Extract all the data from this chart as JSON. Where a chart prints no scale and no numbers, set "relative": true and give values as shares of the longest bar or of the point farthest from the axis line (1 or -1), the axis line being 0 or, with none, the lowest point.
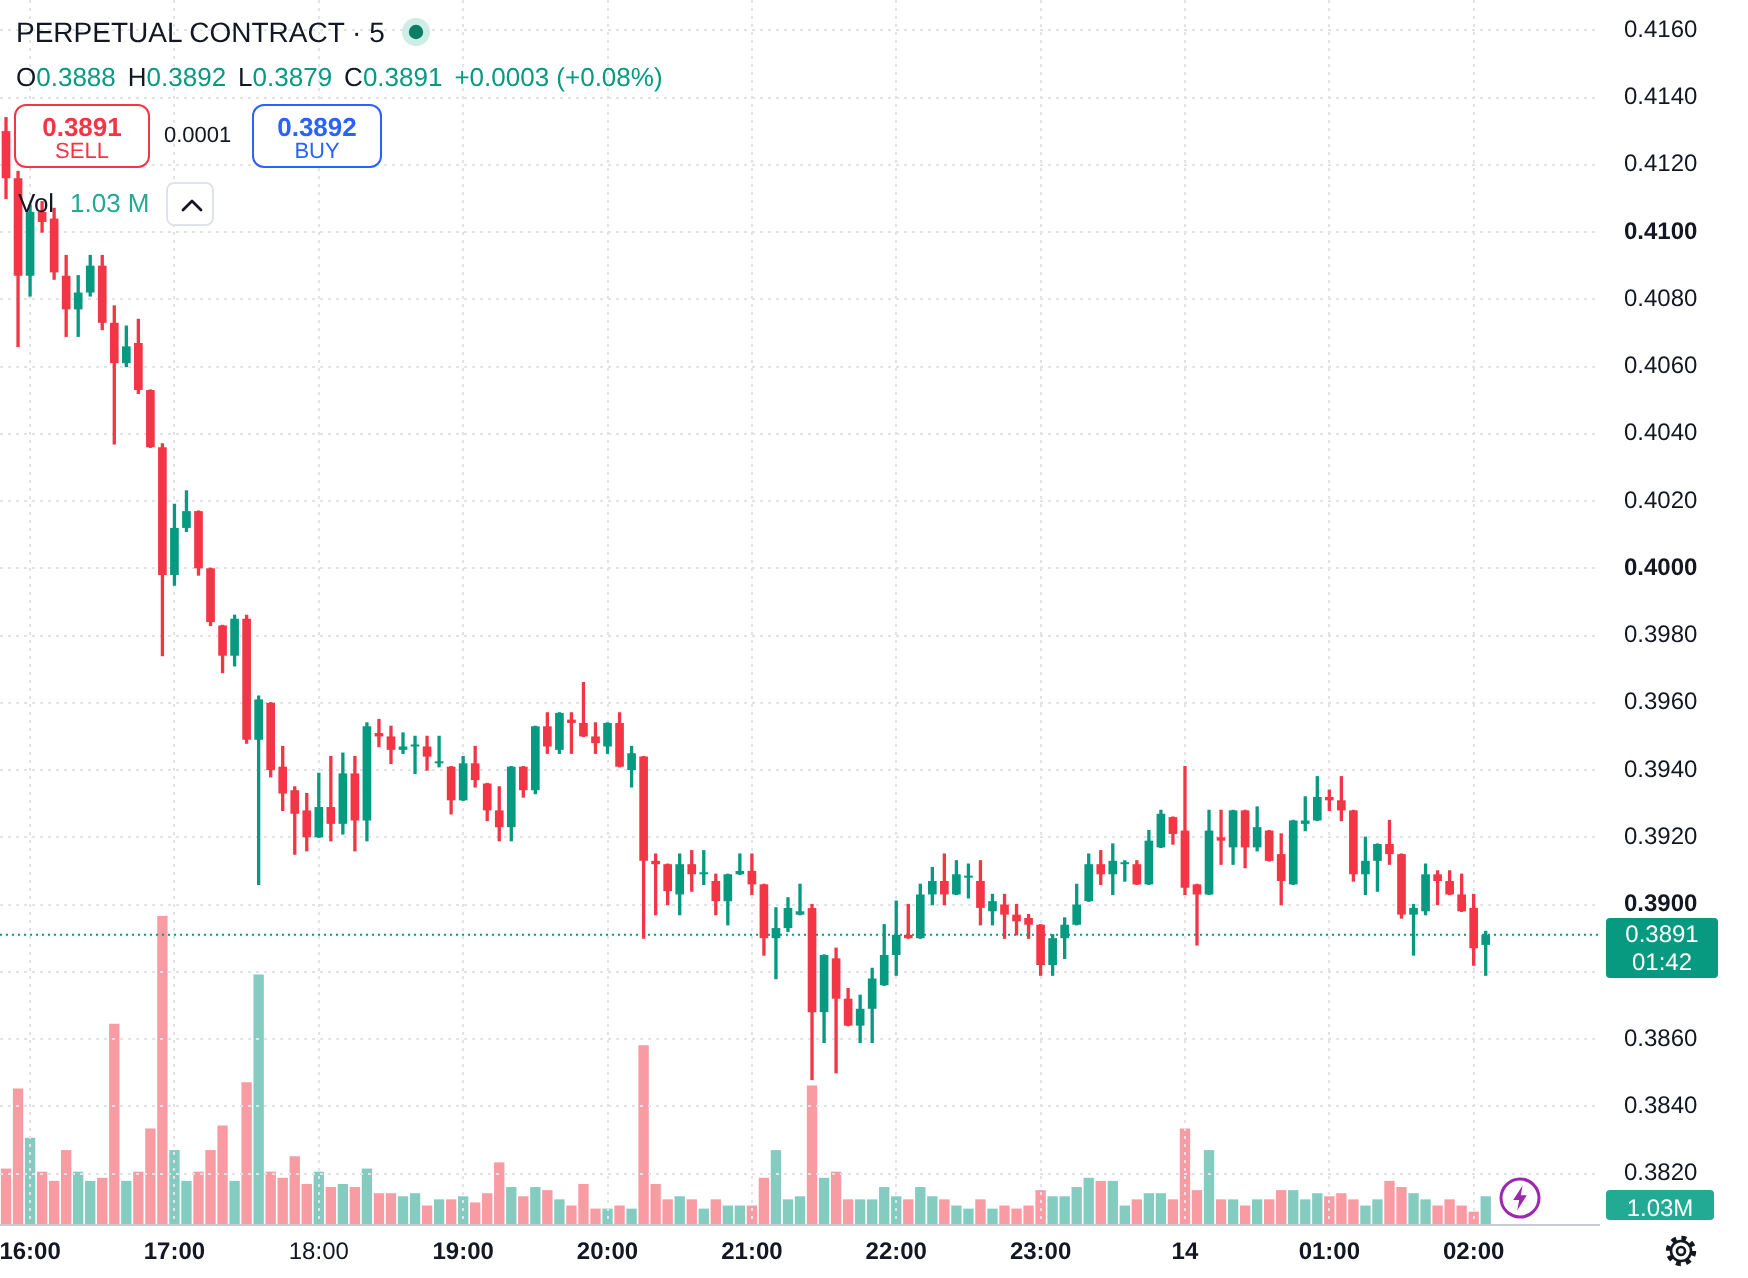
{
  "chart_data": [
    {
      "type": "candlestick",
      "title": "PERPETUAL CONTRACT · 5",
      "categories": [
        null,
        null,
        "16:00",
        null,
        null,
        null,
        null,
        null,
        null,
        null,
        null,
        null,
        null,
        null,
        "17:00",
        null,
        null,
        null,
        null,
        null,
        null,
        null,
        null,
        null,
        null,
        null,
        "18:00",
        null,
        null,
        null,
        null,
        null,
        null,
        null,
        null,
        null,
        null,
        null,
        "19:00",
        null,
        null,
        null,
        null,
        null,
        null,
        null,
        null,
        null,
        null,
        null,
        "20:00",
        null,
        null,
        null,
        null,
        null,
        null,
        null,
        null,
        null,
        null,
        null,
        "21:00",
        null,
        null,
        null,
        null,
        null,
        null,
        null,
        null,
        null,
        null,
        null,
        "22:00",
        null,
        null,
        null,
        null,
        null,
        null,
        null,
        null,
        null,
        null,
        null,
        "23:00",
        null,
        null,
        null,
        null,
        null,
        null,
        null,
        null,
        null,
        null,
        null,
        "14",
        null,
        null,
        null,
        null,
        null,
        null,
        null,
        null,
        null,
        null,
        null,
        "01:00",
        null,
        null,
        null,
        null,
        null,
        null,
        null,
        null,
        null,
        null,
        null,
        "02:00",
        null,
        null,
        null,
        null,
        null,
        null,
        null,
        null,
        null,
        null
      ],
      "ohlc": [
        [
          0.413,
          0.4134,
          0.411,
          0.4116
        ],
        [
          0.4116,
          0.4118,
          0.4066,
          0.4087
        ],
        [
          0.4087,
          0.4108,
          0.4081,
          0.4106
        ],
        [
          0.4106,
          0.4109,
          0.41,
          0.4103
        ],
        [
          0.4104,
          0.4107,
          0.4086,
          0.4088
        ],
        [
          0.4087,
          0.4093,
          0.4069,
          0.4077
        ],
        [
          0.4077,
          0.4087,
          0.4069,
          0.4082
        ],
        [
          0.4082,
          0.4093,
          0.4081,
          0.409
        ],
        [
          0.409,
          0.4093,
          0.4071,
          0.4073
        ],
        [
          0.4073,
          0.4078,
          0.4037,
          0.4061
        ],
        [
          0.4061,
          0.4072,
          0.406,
          0.4066
        ],
        [
          0.4067,
          0.4074,
          0.4052,
          0.4053
        ],
        [
          0.4053,
          0.4053,
          0.4036,
          0.4036
        ],
        [
          0.4036,
          0.4037,
          0.3974,
          0.3998
        ],
        [
          0.3998,
          0.4019,
          0.3995,
          0.4012
        ],
        [
          0.4012,
          0.4023,
          0.4011,
          0.4017
        ],
        [
          0.4017,
          0.4017,
          0.3998,
          0.4
        ],
        [
          0.4,
          0.4,
          0.3983,
          0.3984
        ],
        [
          0.3983,
          0.3983,
          0.3969,
          0.3974
        ],
        [
          0.3974,
          0.3986,
          0.3971,
          0.3985
        ],
        [
          0.3985,
          0.3986,
          0.3948,
          0.3949
        ],
        [
          0.3949,
          0.3962,
          0.3906,
          0.3961
        ],
        [
          0.396,
          0.396,
          0.3938,
          0.394
        ],
        [
          0.3941,
          0.3947,
          0.3928,
          0.3933
        ],
        [
          0.3934,
          0.3935,
          0.3915,
          0.3927
        ],
        [
          0.3928,
          0.3933,
          0.3916,
          0.392
        ],
        [
          0.392,
          0.3939,
          0.392,
          0.3929
        ],
        [
          0.3929,
          0.3944,
          0.3919,
          0.3924
        ],
        [
          0.3924,
          0.3945,
          0.3921,
          0.3939
        ],
        [
          0.3939,
          0.3944,
          0.3916,
          0.3925
        ],
        [
          0.3925,
          0.3954,
          0.3919,
          0.3953
        ],
        [
          0.3951,
          0.3955,
          0.3947,
          0.395
        ],
        [
          0.395,
          0.3953,
          0.3942,
          0.3946
        ],
        [
          0.3946,
          0.3951,
          0.3945,
          0.3947
        ],
        [
          0.3947,
          0.395,
          0.3939,
          0.3947
        ],
        [
          0.3947,
          0.395,
          0.394,
          0.3944
        ],
        [
          0.3942,
          0.395,
          0.3941,
          0.3942
        ],
        [
          0.3941,
          0.3941,
          0.3927,
          0.3931
        ],
        [
          0.3931,
          0.3944,
          0.3931,
          0.3942
        ],
        [
          0.3942,
          0.3947,
          0.3935,
          0.3937
        ],
        [
          0.3936,
          0.3936,
          0.3925,
          0.3928
        ],
        [
          0.3928,
          0.3935,
          0.3919,
          0.3923
        ],
        [
          0.3923,
          0.3941,
          0.3919,
          0.3941
        ],
        [
          0.3941,
          0.3941,
          0.3932,
          0.3934
        ],
        [
          0.3934,
          0.3953,
          0.3933,
          0.3953
        ],
        [
          0.3953,
          0.3957,
          0.3945,
          0.3947
        ],
        [
          0.3946,
          0.3957,
          0.3945,
          0.3957
        ],
        [
          0.3955,
          0.3957,
          0.3945,
          0.3954
        ],
        [
          0.3954,
          0.3966,
          0.395,
          0.395
        ],
        [
          0.395,
          0.3954,
          0.3945,
          0.3948
        ],
        [
          0.3947,
          0.3954,
          0.3945,
          0.3954
        ],
        [
          0.3954,
          0.3957,
          0.3941,
          0.3941
        ],
        [
          0.394,
          0.3947,
          0.3935,
          0.3945
        ],
        [
          0.3944,
          0.3944,
          0.389,
          0.3913
        ],
        [
          0.3913,
          0.3915,
          0.3897,
          0.3912
        ],
        [
          0.3912,
          0.3912,
          0.39,
          0.3904
        ],
        [
          0.3903,
          0.3915,
          0.3897,
          0.3912
        ],
        [
          0.3912,
          0.3916,
          0.3904,
          0.3909
        ],
        [
          0.3909,
          0.3916,
          0.3906,
          0.3909
        ],
        [
          0.3907,
          0.3909,
          0.3897,
          0.3901
        ],
        [
          0.3901,
          0.3909,
          0.3894,
          0.3909
        ],
        [
          0.3909,
          0.3915,
          0.3909,
          0.391
        ],
        [
          0.391,
          0.3915,
          0.3903,
          0.3906
        ],
        [
          0.3906,
          0.3906,
          0.3885,
          0.389
        ],
        [
          0.389,
          0.3899,
          0.3878,
          0.3893
        ],
        [
          0.3893,
          0.3902,
          0.3892,
          0.3899
        ],
        [
          0.3897,
          0.3906,
          0.3897,
          0.3898
        ],
        [
          0.3899,
          0.39,
          0.3848,
          0.3868
        ],
        [
          0.3868,
          0.3885,
          0.3859,
          0.3885
        ],
        [
          0.3884,
          0.3887,
          0.385,
          0.3872
        ],
        [
          0.3872,
          0.3875,
          0.3864,
          0.3864
        ],
        [
          0.3864,
          0.3873,
          0.3859,
          0.3869
        ],
        [
          0.3869,
          0.3881,
          0.3859,
          0.3878
        ],
        [
          0.3876,
          0.3894,
          0.3876,
          0.3885
        ],
        [
          0.3885,
          0.3901,
          0.3879,
          0.3891
        ],
        [
          0.3891,
          0.39,
          0.389,
          0.389
        ],
        [
          0.389,
          0.3906,
          0.389,
          0.3903
        ],
        [
          0.3903,
          0.3911,
          0.39,
          0.3907
        ],
        [
          0.3907,
          0.3915,
          0.39,
          0.3903
        ],
        [
          0.3903,
          0.3913,
          0.3903,
          0.3909
        ],
        [
          0.3908,
          0.3912,
          0.3902,
          0.3908
        ],
        [
          0.3907,
          0.3913,
          0.3894,
          0.3899
        ],
        [
          0.3898,
          0.3903,
          0.3894,
          0.3901
        ],
        [
          0.39,
          0.3903,
          0.389,
          0.3897
        ],
        [
          0.3897,
          0.39,
          0.3891,
          0.3895
        ],
        [
          0.3896,
          0.3897,
          0.389,
          0.3894
        ],
        [
          0.3894,
          0.3894,
          0.3879,
          0.3882
        ],
        [
          0.3882,
          0.3891,
          0.3879,
          0.389
        ],
        [
          0.389,
          0.3896,
          0.3884,
          0.3894
        ],
        [
          0.3894,
          0.3906,
          0.3894,
          0.39
        ],
        [
          0.3901,
          0.3915,
          0.3901,
          0.3912
        ],
        [
          0.3912,
          0.3916,
          0.3906,
          0.3909
        ],
        [
          0.3909,
          0.3918,
          0.3903,
          0.3913
        ],
        [
          0.3912,
          0.3913,
          0.3907,
          0.3912
        ],
        [
          0.3912,
          0.3913,
          0.3906,
          0.3906
        ],
        [
          0.3906,
          0.3922,
          0.3906,
          0.3919
        ],
        [
          0.3917,
          0.3928,
          0.3917,
          0.3927
        ],
        [
          0.3926,
          0.3926,
          0.3918,
          0.3921
        ],
        [
          0.3922,
          0.3941,
          0.3903,
          0.3905
        ],
        [
          0.3906,
          0.3906,
          0.3888,
          0.3903
        ],
        [
          0.3903,
          0.3928,
          0.3903,
          0.3922
        ],
        [
          0.392,
          0.3928,
          0.3912,
          0.3919
        ],
        [
          0.3917,
          0.3928,
          0.3912,
          0.3928
        ],
        [
          0.3928,
          0.3928,
          0.3911,
          0.3917
        ],
        [
          0.3917,
          0.3929,
          0.3916,
          0.3923
        ],
        [
          0.3922,
          0.3922,
          0.3913,
          0.3913
        ],
        [
          0.3915,
          0.3921,
          0.39,
          0.3907
        ],
        [
          0.3906,
          0.3925,
          0.3906,
          0.3925
        ],
        [
          0.3924,
          0.3932,
          0.3922,
          0.3925
        ],
        [
          0.3925,
          0.3938,
          0.3925,
          0.3932
        ],
        [
          0.3932,
          0.3934,
          0.3928,
          0.3931
        ],
        [
          0.3931,
          0.3938,
          0.3925,
          0.3928
        ],
        [
          0.3928,
          0.3928,
          0.3907,
          0.3909
        ],
        [
          0.3909,
          0.392,
          0.3903,
          0.3913
        ],
        [
          0.3913,
          0.3918,
          0.3904,
          0.3918
        ],
        [
          0.3918,
          0.3925,
          0.3912,
          0.3915
        ],
        [
          0.3915,
          0.3915,
          0.3896,
          0.3897
        ],
        [
          0.3897,
          0.39,
          0.3885,
          0.3899
        ],
        [
          0.3898,
          0.3912,
          0.3897,
          0.3909
        ],
        [
          0.3909,
          0.391,
          0.39,
          0.3907
        ],
        [
          0.3907,
          0.391,
          0.3903,
          0.3903
        ],
        [
          0.3903,
          0.3909,
          0.3898,
          0.3898
        ],
        [
          0.3899,
          0.3903,
          0.3882,
          0.3887
        ],
        [
          0.3888,
          0.3892,
          0.3879,
          0.3891
        ],
        null,
        null,
        null,
        null,
        null,
        null,
        null,
        null,
        null
      ],
      "colors": [
        "#f23645",
        "#f23645",
        "#089981",
        "#f23645",
        "#f23645",
        "#f23645",
        "#089981",
        "#089981",
        "#f23645",
        "#f23645",
        "#089981",
        "#f23645",
        "#f23645",
        "#f23645",
        "#089981",
        "#089981",
        "#f23645",
        "#f23645",
        "#f23645",
        "#089981",
        "#f23645",
        "#089981",
        "#f23645",
        "#f23645",
        "#f23645",
        "#f23645",
        "#089981",
        "#f23645",
        "#089981",
        "#f23645",
        "#089981",
        "#f23645",
        "#f23645",
        "#089981",
        "#089981",
        "#f23645",
        "#089981",
        "#f23645",
        "#089981",
        "#f23645",
        "#f23645",
        "#f23645",
        "#089981",
        "#f23645",
        "#089981",
        "#f23645",
        "#089981",
        "#f23645",
        "#f23645",
        "#f23645",
        "#089981",
        "#f23645",
        "#089981",
        "#f23645",
        "#f23645",
        "#f23645",
        "#089981",
        "#f23645",
        "#089981",
        "#f23645",
        "#089981",
        "#089981",
        "#f23645",
        "#f23645",
        "#089981",
        "#089981",
        "#089981",
        "#f23645",
        "#089981",
        "#f23645",
        "#f23645",
        "#089981",
        "#089981",
        "#089981",
        "#089981",
        "#f23645",
        "#089981",
        "#089981",
        "#f23645",
        "#089981",
        "#089981",
        "#f23645",
        "#089981",
        "#f23645",
        "#f23645",
        "#f23645",
        "#f23645",
        "#089981",
        "#089981",
        "#089981",
        "#089981",
        "#f23645",
        "#089981",
        "#089981",
        "#f23645",
        "#089981",
        "#089981",
        "#f23645",
        "#f23645",
        "#f23645",
        "#089981",
        "#f23645",
        "#089981",
        "#f23645",
        "#089981",
        "#f23645",
        "#f23645",
        "#089981",
        "#089981",
        "#089981",
        "#f23645",
        "#f23645",
        "#f23645",
        "#089981",
        "#089981",
        "#f23645",
        "#f23645",
        "#089981",
        "#089981",
        "#f23645",
        "#f23645",
        "#f23645",
        "#f23645",
        "#089981",
        null,
        null,
        null,
        null,
        null,
        null,
        null,
        null,
        null
      ],
      "ylim": [
        0.3805,
        0.4169
      ],
      "yticks": [
        {
          "value": 0.382,
          "label": "0.3820"
        },
        {
          "value": 0.384,
          "label": "0.3840"
        },
        {
          "value": 0.386,
          "label": "0.3860"
        },
        {
          "value": 0.388,
          "label": null
        },
        {
          "value": 0.39,
          "label": "0.3900"
        },
        {
          "value": 0.392,
          "label": "0.3920"
        },
        {
          "value": 0.394,
          "label": "0.3940"
        },
        {
          "value": 0.396,
          "label": "0.3960"
        },
        {
          "value": 0.398,
          "label": "0.3980"
        },
        {
          "value": 0.4,
          "label": "0.4000"
        },
        {
          "value": 0.402,
          "label": "0.4020"
        },
        {
          "value": 0.404,
          "label": "0.4040"
        },
        {
          "value": 0.406,
          "label": "0.4060"
        },
        {
          "value": 0.408,
          "label": "0.4080"
        },
        {
          "value": 0.41,
          "label": "0.4100"
        },
        {
          "value": 0.412,
          "label": "0.4120"
        },
        {
          "value": 0.414,
          "label": "0.4140"
        },
        {
          "value": 0.416,
          "label": "0.4160"
        }
      ],
      "ref_lines": [
        {
          "axis": "y",
          "value": 0.3891,
          "label": "0.3891",
          "color": "#089981",
          "line_style": "dotted"
        }
      ],
      "annotations": [
        "O0.3888",
        "H0.3892",
        "L0.3879",
        "C0.3891",
        "+0.0003 (+0.08%)",
        "0.3891",
        "SELL",
        "0.0001",
        "0.3892",
        "BUY",
        "01:42",
        "Vol",
        "1.03 M",
        "1.03M"
      ],
      "grid": true
    },
    {
      "type": "bar",
      "relative": true,
      "categories": [
        null,
        null,
        null,
        null,
        null,
        null,
        null,
        null,
        null,
        null,
        null,
        null,
        null,
        null,
        null,
        null,
        null,
        null,
        null,
        null,
        null,
        null,
        null,
        null,
        null,
        null,
        null,
        null,
        null,
        null,
        null,
        null,
        null,
        null,
        null,
        null,
        null,
        null,
        null,
        null,
        null,
        null,
        null,
        null,
        null,
        null,
        null,
        null,
        null,
        null,
        null,
        null,
        null,
        null,
        null,
        null,
        null,
        null,
        null,
        null,
        null,
        null,
        null,
        null,
        null,
        null,
        null,
        null,
        null,
        null,
        null,
        null,
        null,
        null,
        null,
        null,
        null,
        null,
        null,
        null,
        null,
        null,
        null,
        null,
        null,
        null,
        null,
        null,
        null,
        null,
        null,
        null,
        null,
        null,
        null,
        null,
        null,
        null,
        null,
        null,
        null,
        null,
        null,
        null,
        null,
        null,
        null,
        null,
        null,
        null,
        null,
        null,
        null,
        null,
        null,
        null,
        null,
        null,
        null,
        null,
        null,
        null,
        null,
        null,
        null,
        null,
        null,
        null,
        null,
        null,
        null,
        null,
        null
      ],
      "values": [
        0.18,
        0.44,
        0.28,
        0.17,
        0.14,
        0.24,
        0.17,
        0.14,
        0.15,
        0.65,
        0.14,
        0.17,
        0.31,
        1,
        0.24,
        0.14,
        0.17,
        0.24,
        0.32,
        0.14,
        0.46,
        0.81,
        0.17,
        0.15,
        0.22,
        0.13,
        0.17,
        0.12,
        0.13,
        0.12,
        0.18,
        0.1,
        0.1,
        0.09,
        0.1,
        0.06,
        0.08,
        0.08,
        0.09,
        0.07,
        0.1,
        0.2,
        0.12,
        0.09,
        0.12,
        0.11,
        0.08,
        0.06,
        0.13,
        0.05,
        0.05,
        0.06,
        0.05,
        0.58,
        0.13,
        0.08,
        0.09,
        0.08,
        0.05,
        0.08,
        0.06,
        0.06,
        0.06,
        0.15,
        0.24,
        0.08,
        0.09,
        0.45,
        0.15,
        0.17,
        0.08,
        0.08,
        0.08,
        0.12,
        0.09,
        0.08,
        0.12,
        0.09,
        0.08,
        0.06,
        0.05,
        0.08,
        0.05,
        0.06,
        0.05,
        0.06,
        0.11,
        0.09,
        0.09,
        0.12,
        0.15,
        0.14,
        0.14,
        0.06,
        0.08,
        0.1,
        0.1,
        0.08,
        0.31,
        0.11,
        0.24,
        0.08,
        0.08,
        0.06,
        0.08,
        0.08,
        0.11,
        0.11,
        0.08,
        0.1,
        0.09,
        0.1,
        0.08,
        0.06,
        0.08,
        0.14,
        0.12,
        0.1,
        0.08,
        0.06,
        0.08,
        0.06,
        0.04,
        0.09,
        null,
        null,
        null,
        null,
        null,
        null,
        null,
        null,
        null
      ],
      "colors": [
        "#f89ba2",
        "#f89ba2",
        "#84ccc0",
        "#f89ba2",
        "#f89ba2",
        "#f89ba2",
        "#84ccc0",
        "#84ccc0",
        "#f89ba2",
        "#f89ba2",
        "#84ccc0",
        "#f89ba2",
        "#f89ba2",
        "#f89ba2",
        "#84ccc0",
        "#84ccc0",
        "#f89ba2",
        "#f89ba2",
        "#f89ba2",
        "#84ccc0",
        "#f89ba2",
        "#84ccc0",
        "#f89ba2",
        "#f89ba2",
        "#f89ba2",
        "#f89ba2",
        "#84ccc0",
        "#f89ba2",
        "#84ccc0",
        "#f89ba2",
        "#84ccc0",
        "#f89ba2",
        "#f89ba2",
        "#84ccc0",
        "#84ccc0",
        "#f89ba2",
        "#84ccc0",
        "#f89ba2",
        "#84ccc0",
        "#f89ba2",
        "#f89ba2",
        "#f89ba2",
        "#84ccc0",
        "#f89ba2",
        "#84ccc0",
        "#f89ba2",
        "#84ccc0",
        "#f89ba2",
        "#f89ba2",
        "#f89ba2",
        "#84ccc0",
        "#f89ba2",
        "#84ccc0",
        "#f89ba2",
        "#f89ba2",
        "#f89ba2",
        "#84ccc0",
        "#f89ba2",
        "#84ccc0",
        "#f89ba2",
        "#84ccc0",
        "#84ccc0",
        "#f89ba2",
        "#f89ba2",
        "#84ccc0",
        "#84ccc0",
        "#84ccc0",
        "#f89ba2",
        "#84ccc0",
        "#f89ba2",
        "#f89ba2",
        "#84ccc0",
        "#84ccc0",
        "#84ccc0",
        "#84ccc0",
        "#f89ba2",
        "#84ccc0",
        "#84ccc0",
        "#f89ba2",
        "#84ccc0",
        "#84ccc0",
        "#f89ba2",
        "#84ccc0",
        "#f89ba2",
        "#f89ba2",
        "#f89ba2",
        "#f89ba2",
        "#84ccc0",
        "#84ccc0",
        "#84ccc0",
        "#84ccc0",
        "#f89ba2",
        "#84ccc0",
        "#84ccc0",
        "#f89ba2",
        "#84ccc0",
        "#84ccc0",
        "#f89ba2",
        "#f89ba2",
        "#f89ba2",
        "#84ccc0",
        "#f89ba2",
        "#84ccc0",
        "#f89ba2",
        "#84ccc0",
        "#f89ba2",
        "#f89ba2",
        "#84ccc0",
        "#84ccc0",
        "#84ccc0",
        "#f89ba2",
        "#f89ba2",
        "#f89ba2",
        "#84ccc0",
        "#84ccc0",
        "#f89ba2",
        "#f89ba2",
        "#84ccc0",
        "#84ccc0",
        "#f89ba2",
        "#f89ba2",
        "#f89ba2",
        "#f89ba2",
        "#84ccc0",
        null,
        null,
        null,
        null,
        null,
        null,
        null,
        null,
        null
      ]
    }
  ]
}
